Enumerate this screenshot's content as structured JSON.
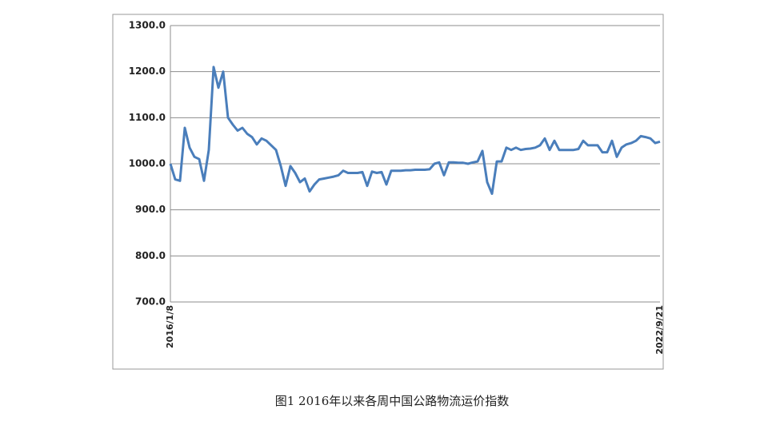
{
  "chart_data": {
    "type": "line",
    "title": "图1 2016年以来各周中国公路物流运价指数",
    "categories": [
      "2016/1/8",
      null,
      null,
      null,
      null,
      null,
      null,
      null,
      null,
      null,
      null,
      null,
      null,
      null,
      null,
      null,
      null,
      null,
      null,
      null,
      null,
      null,
      null,
      null,
      null,
      null,
      null,
      null,
      null,
      null,
      null,
      null,
      null,
      null,
      null,
      null,
      null,
      null,
      null,
      null,
      null,
      null,
      null,
      null,
      null,
      null,
      null,
      null,
      null,
      null,
      null,
      null,
      null,
      null,
      null,
      null,
      null,
      null,
      null,
      null,
      null,
      null,
      null,
      null,
      null,
      null,
      null,
      null,
      null,
      null,
      null,
      null,
      null,
      null,
      null,
      null,
      null,
      null,
      null,
      null,
      null,
      null,
      null,
      null,
      null,
      null,
      null,
      null,
      null,
      null,
      null,
      null,
      null,
      null,
      null,
      null,
      null,
      null,
      null,
      null,
      null,
      null,
      "2022/9/21"
    ],
    "values": [
      1000,
      966,
      963,
      1078,
      1035,
      1015,
      1010,
      963,
      1030,
      1210,
      1165,
      1200,
      1100,
      1085,
      1072,
      1078,
      1065,
      1058,
      1042,
      1055,
      1050,
      1040,
      1030,
      995,
      952,
      995,
      980,
      960,
      968,
      940,
      955,
      966,
      968,
      970,
      972,
      975,
      985,
      980,
      980,
      980,
      982,
      952,
      983,
      980,
      982,
      955,
      985,
      985,
      985,
      986,
      986,
      987,
      987,
      987,
      988,
      1000,
      1003,
      975,
      1003,
      1003,
      1002,
      1002,
      1000,
      1003,
      1005,
      1028,
      960,
      935,
      1005,
      1005,
      1035,
      1030,
      1035,
      1030,
      1032,
      1033,
      1035,
      1040,
      1055,
      1030,
      1050,
      1030,
      1030,
      1030,
      1030,
      1032,
      1050,
      1040,
      1040,
      1040,
      1025,
      1025,
      1050,
      1015,
      1035,
      1042,
      1045,
      1050,
      1060,
      1058,
      1055,
      1045,
      1048
    ],
    "color": "#4a7ebb",
    "ylim": [
      700,
      1300
    ],
    "yticks": [
      {
        "value": 700,
        "label": "700.0"
      },
      {
        "value": 800,
        "label": "800.0"
      },
      {
        "value": 900,
        "label": "900.0"
      },
      {
        "value": 1000,
        "label": "1000.0"
      },
      {
        "value": 1100,
        "label": "1100.0"
      },
      {
        "value": 1200,
        "label": "1200.0"
      },
      {
        "value": 1300,
        "label": "1300.0"
      }
    ],
    "grid": true
  }
}
